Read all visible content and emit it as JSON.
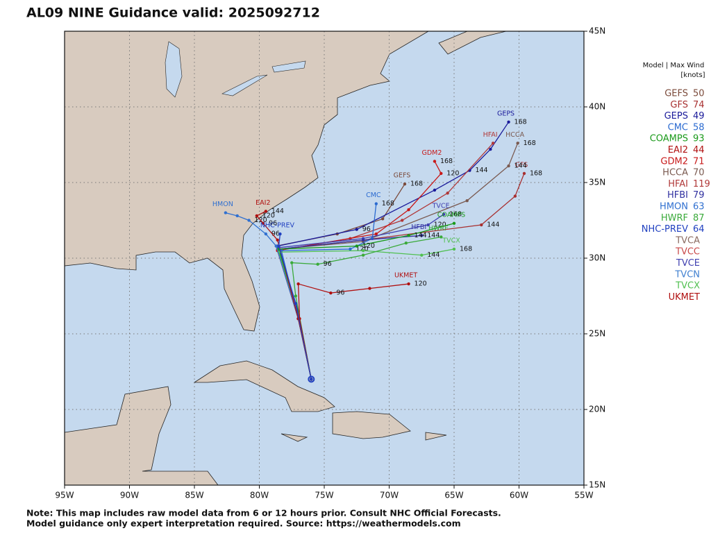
{
  "title": "AL09 NINE Guidance valid: 2025092712",
  "map": {
    "xlim": [
      -95,
      -55
    ],
    "ylim": [
      15,
      45
    ],
    "xticks": [
      {
        "value": -95,
        "label": "95W"
      },
      {
        "value": -90,
        "label": "90W"
      },
      {
        "value": -85,
        "label": "85W"
      },
      {
        "value": -80,
        "label": "80W"
      },
      {
        "value": -75,
        "label": "75W"
      },
      {
        "value": -70,
        "label": "70W"
      },
      {
        "value": -65,
        "label": "65W"
      },
      {
        "value": -60,
        "label": "60W"
      },
      {
        "value": -55,
        "label": "55W"
      }
    ],
    "yticks": [
      {
        "value": 15,
        "label": "15N"
      },
      {
        "value": 20,
        "label": "20N"
      },
      {
        "value": 25,
        "label": "25N"
      },
      {
        "value": 30,
        "label": "30N"
      },
      {
        "value": 35,
        "label": "35N"
      },
      {
        "value": 40,
        "label": "40N"
      },
      {
        "value": 45,
        "label": "45N"
      }
    ],
    "grid": true
  },
  "legend": {
    "header": "Model | Max Wind",
    "unit": "[knots]",
    "models": [
      {
        "name": "GEFS",
        "wind": 50,
        "color": "#7b4a3a"
      },
      {
        "name": "GFS",
        "wind": 74,
        "color": "#a83030"
      },
      {
        "name": "GEPS",
        "wind": 49,
        "color": "#1a1a9a"
      },
      {
        "name": "CMC",
        "wind": 58,
        "color": "#2a6ad0"
      },
      {
        "name": "COAMPS",
        "wind": 93,
        "color": "#1a9a1a"
      },
      {
        "name": "EAI2",
        "wind": 44,
        "color": "#b01010"
      },
      {
        "name": "GDM2",
        "wind": 71,
        "color": "#c81818"
      },
      {
        "name": "HCCA",
        "wind": 70,
        "color": "#7a5a50"
      },
      {
        "name": "HFAI",
        "wind": 119,
        "color": "#b03838"
      },
      {
        "name": "HFBI",
        "wind": 79,
        "color": "#3030a0"
      },
      {
        "name": "HMON",
        "wind": 63,
        "color": "#3070d0"
      },
      {
        "name": "HWRF",
        "wind": 87,
        "color": "#3aaa3a"
      },
      {
        "name": "NHC-PREV",
        "wind": 64,
        "color": "#2040c0"
      },
      {
        "name": "TVCA",
        "color": "#8a6a60"
      },
      {
        "name": "TVCC",
        "color": "#c84848"
      },
      {
        "name": "TVCE",
        "color": "#4040b0"
      },
      {
        "name": "TVCN",
        "color": "#4080d0"
      },
      {
        "name": "TVCX",
        "color": "#50c050"
      },
      {
        "name": "UKMET",
        "color": "#b01010"
      }
    ]
  },
  "tracks": [
    {
      "model": "GEFS",
      "color": "#7b4a3a",
      "lon": [
        -76,
        -77,
        -78.7,
        -74,
        -70.5,
        -68.8
      ],
      "lat": [
        22,
        26,
        30.8,
        31.6,
        32.6,
        34.9
      ],
      "hours": [
        null,
        null,
        null,
        null,
        null,
        168
      ]
    },
    {
      "model": "GFS",
      "color": "#a83030",
      "lon": [
        -76,
        -77.2,
        -78.5,
        -72,
        -62.9,
        -60.3,
        -59.6
      ],
      "lat": [
        22,
        27,
        30.6,
        31.2,
        32.2,
        34.1,
        35.6
      ],
      "hours": [
        null,
        null,
        null,
        null,
        144,
        null,
        168
      ]
    },
    {
      "model": "GEPS",
      "color": "#1a1a9a",
      "lon": [
        -76,
        -77,
        -78.6,
        -72.5,
        -66.5,
        -63.8,
        -62.2,
        -60.8
      ],
      "lat": [
        22,
        26.5,
        30.8,
        31.9,
        34.5,
        35.8,
        37.2,
        39
      ],
      "hours": [
        null,
        null,
        null,
        96,
        null,
        144,
        null,
        168
      ]
    },
    {
      "model": "HFAI",
      "color": "#b03838",
      "lon": [
        -76,
        -77,
        -78.6,
        -73,
        -69,
        -65.5,
        -62
      ],
      "lat": [
        22,
        26,
        30.5,
        31.3,
        32.5,
        34.3,
        37.6
      ],
      "hours": [
        null,
        null,
        null,
        null,
        null,
        null,
        null
      ]
    },
    {
      "model": "HCCA",
      "color": "#7a5a50",
      "lon": [
        -76,
        -77,
        -78.6,
        -72,
        -64,
        -60.8,
        -60.1
      ],
      "lat": [
        22,
        26,
        30.6,
        31.1,
        33.8,
        36.1,
        37.6
      ],
      "hours": [
        null,
        null,
        null,
        null,
        null,
        144,
        168
      ]
    },
    {
      "model": "GDM2",
      "color": "#c81818",
      "lon": [
        -76,
        -77,
        -78.6,
        -71,
        -68.5,
        -66,
        -66.5
      ],
      "lat": [
        22,
        26,
        30.5,
        31.6,
        33.2,
        35.6,
        36.4
      ],
      "hours": [
        null,
        null,
        null,
        null,
        null,
        120,
        168
      ]
    },
    {
      "model": "CMC",
      "color": "#2a6ad0",
      "lon": [
        -76,
        -77,
        -78.3,
        -73,
        -71.3,
        -71
      ],
      "lat": [
        22,
        26,
        30.5,
        30.6,
        31.3,
        33.6
      ],
      "hours": [
        null,
        null,
        null,
        120,
        null,
        168
      ]
    },
    {
      "model": "TVCE",
      "color": "#4040b0",
      "lon": [
        -76,
        -77,
        -78.5,
        -72,
        -67,
        -65.8
      ],
      "lat": [
        22,
        26,
        30.7,
        31.3,
        32.2,
        32.9
      ],
      "hours": [
        null,
        null,
        null,
        null,
        120,
        168
      ]
    },
    {
      "model": "HFBI",
      "color": "#3030a0",
      "lon": [
        -76,
        -77,
        -78.5,
        -72,
        -67.5
      ],
      "lat": [
        22,
        26,
        30.6,
        31.2,
        31.5
      ],
      "hours": [
        null,
        null,
        null,
        null,
        144
      ]
    },
    {
      "model": "COAMPS",
      "color": "#1a9a1a",
      "lon": [
        -76,
        -77,
        -78.5,
        -72.5,
        -68.5,
        -65
      ],
      "lat": [
        22,
        26,
        30.6,
        30.8,
        31.5,
        32.3
      ],
      "hours": [
        null,
        null,
        null,
        120,
        144,
        null
      ]
    },
    {
      "model": "TVCX",
      "color": "#50c050",
      "lon": [
        -76,
        -77,
        -78.5,
        -72,
        -67.5,
        -65
      ],
      "lat": [
        22,
        26,
        30.4,
        30.5,
        30.2,
        30.6
      ],
      "hours": [
        null,
        null,
        null,
        null,
        144,
        168
      ]
    },
    {
      "model": "HWRF",
      "color": "#3aaa3a",
      "lon": [
        -76,
        -77.2,
        -77.5,
        -75.5,
        -72,
        -68.7,
        -66
      ],
      "lat": [
        22,
        27.5,
        29.7,
        29.6,
        30.2,
        31.0,
        31.4
      ],
      "hours": [
        null,
        null,
        null,
        96,
        null,
        null,
        null
      ]
    },
    {
      "model": "UKMET",
      "color": "#b01010",
      "lon": [
        -76,
        -76.9,
        -77,
        -74.5,
        -71.5,
        -68.5
      ],
      "lat": [
        22,
        26,
        28.3,
        27.7,
        28,
        28.3
      ],
      "hours": [
        null,
        null,
        null,
        96,
        null,
        120
      ]
    },
    {
      "model": "HMON",
      "color": "#3070d0",
      "lon": [
        -76,
        -77,
        -78.7,
        -79.5,
        -80.8,
        -81.7,
        -82.6
      ],
      "lat": [
        22,
        26,
        30.8,
        31.6,
        32.5,
        32.8,
        33
      ],
      "hours": [
        null,
        null,
        null,
        96,
        120,
        null,
        null
      ]
    },
    {
      "model": "EAI2",
      "color": "#b01010",
      "lon": [
        -76,
        -77,
        -78.6,
        -79.7,
        -80.2,
        -79.5
      ],
      "lat": [
        22,
        26,
        31.2,
        32.3,
        32.8,
        33.1
      ],
      "hours": [
        null,
        null,
        null,
        96,
        120,
        144
      ]
    },
    {
      "model": "NHC-PREV",
      "color": "#2040c0",
      "lon": [
        -76,
        -77.2,
        -78.5,
        -78.4
      ],
      "lat": [
        22,
        27,
        30.8,
        31.6
      ],
      "hours": [
        null,
        null,
        null,
        null
      ]
    }
  ],
  "note": [
    "Note: This map includes raw model data from 6 or 12 hours prior. Consult NHC Official Forecasts.",
    "Model guidance only expert interpretation required. Source: https://weathermodels.com"
  ]
}
